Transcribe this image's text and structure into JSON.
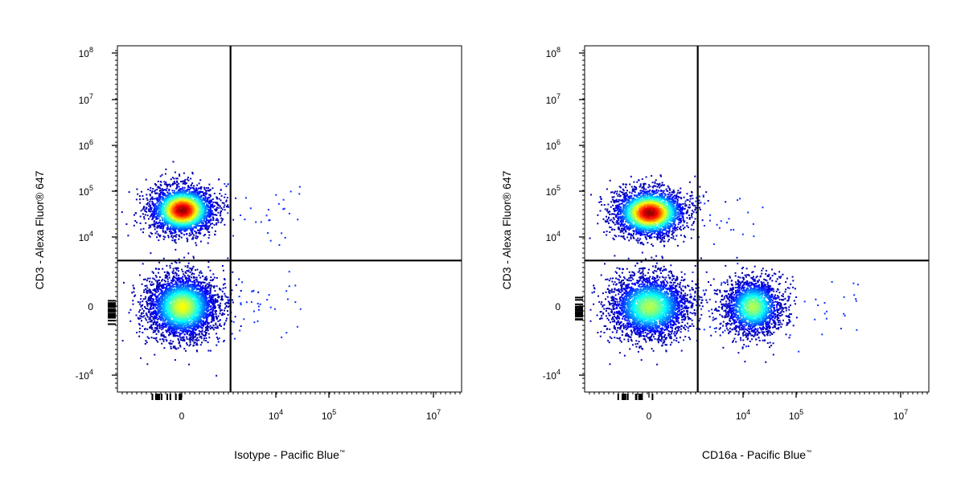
{
  "chart_data": [
    {
      "type": "scatter",
      "title": "",
      "xlabel": "Isotype - Pacific Blue",
      "xlabel_mark": "™",
      "ylabel": "CD3 - Alexa Fluor® 647",
      "x_scale": "biexponential",
      "y_scale": "biexponential",
      "x_ticks": [
        {
          "base": "0",
          "exp": ""
        },
        {
          "base": "10",
          "exp": "4"
        },
        {
          "base": "10",
          "exp": "5"
        },
        {
          "base": "10",
          "exp": "7"
        }
      ],
      "y_ticks": [
        {
          "base": "10",
          "exp": "8"
        },
        {
          "base": "10",
          "exp": "7"
        },
        {
          "base": "10",
          "exp": "6"
        },
        {
          "base": "10",
          "exp": "5"
        },
        {
          "base": "10",
          "exp": "4"
        },
        {
          "base": "0",
          "exp": ""
        },
        {
          "base": "-10",
          "exp": "4"
        }
      ],
      "gate": {
        "x": 1800,
        "y": 3000
      },
      "populations": [
        {
          "x_center": 0,
          "y_center": 40000,
          "density": "high"
        },
        {
          "x_center": 0,
          "y_center": 0,
          "density": "high"
        }
      ],
      "grid": false
    },
    {
      "type": "scatter",
      "title": "",
      "xlabel": "CD16a - Pacific Blue",
      "xlabel_mark": "™",
      "ylabel": "CD3 - Alexa Fluor® 647",
      "x_scale": "biexponential",
      "y_scale": "biexponential",
      "x_ticks": [
        {
          "base": "0",
          "exp": ""
        },
        {
          "base": "10",
          "exp": "4"
        },
        {
          "base": "10",
          "exp": "5"
        },
        {
          "base": "10",
          "exp": "7"
        }
      ],
      "y_ticks": [
        {
          "base": "10",
          "exp": "8"
        },
        {
          "base": "10",
          "exp": "7"
        },
        {
          "base": "10",
          "exp": "6"
        },
        {
          "base": "10",
          "exp": "5"
        },
        {
          "base": "10",
          "exp": "4"
        },
        {
          "base": "0",
          "exp": ""
        },
        {
          "base": "-10",
          "exp": "4"
        }
      ],
      "gate": {
        "x": 1800,
        "y": 3000
      },
      "populations": [
        {
          "x_center": 0,
          "y_center": 35000,
          "density": "high"
        },
        {
          "x_center": 0,
          "y_center": 0,
          "density": "high"
        },
        {
          "x_center": 15000,
          "y_center": 0,
          "density": "medium"
        }
      ],
      "grid": false
    }
  ]
}
